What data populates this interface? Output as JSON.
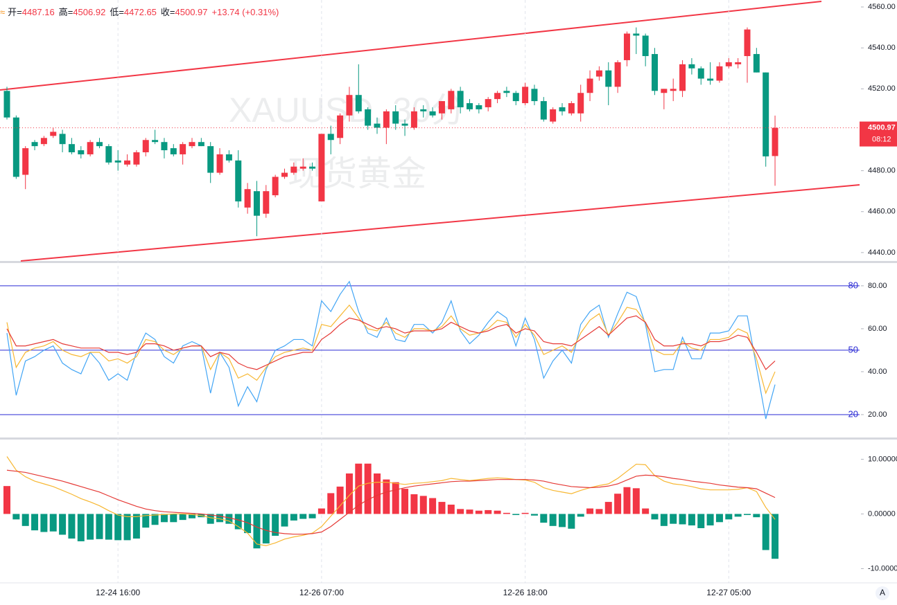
{
  "chart_data": [
    {
      "type": "candlestick",
      "header": [
        {
          "label": "开=",
          "value": "4487.16"
        },
        {
          "label": "高=",
          "value": "4506.92"
        },
        {
          "label": "低=",
          "value": "4472.65"
        },
        {
          "label": "收=",
          "value": "4500.97"
        }
      ],
      "change": "+13.74 (+0.31%)",
      "watermark": [
        "XAUUSD, 30分",
        "现货黄金"
      ],
      "last_price_label": "4500.97",
      "countdown": "08:12",
      "up_color": "#f23645",
      "down_color": "#089981",
      "categories": [
        null,
        null,
        null,
        null,
        null,
        null,
        null,
        null,
        null,
        null,
        null,
        null,
        "12-24 16:00",
        null,
        null,
        null,
        null,
        null,
        null,
        null,
        null,
        null,
        null,
        null,
        null,
        null,
        null,
        null,
        null,
        null,
        null,
        null,
        null,
        null,
        "12-26 07:00",
        null,
        null,
        null,
        null,
        null,
        null,
        null,
        null,
        null,
        null,
        null,
        null,
        null,
        null,
        null,
        null,
        null,
        null,
        null,
        null,
        null,
        "12-26 18:00",
        null,
        null,
        null,
        null,
        null,
        null,
        null,
        null,
        null,
        null,
        null,
        null,
        null,
        null,
        null,
        null,
        null,
        null,
        null,
        null,
        null,
        "12-27 05:00",
        null,
        null,
        null,
        null,
        null
      ],
      "open": [
        4519,
        4506,
        4478,
        4494,
        4493,
        4497,
        4498,
        4493,
        4490,
        4488,
        4494,
        4492,
        4485,
        4483,
        4483,
        4489,
        4495,
        4494,
        4491,
        4488,
        4492,
        4494,
        4492,
        4479,
        4488,
        4485,
        4462,
        4470,
        4459,
        4468,
        4477,
        4479,
        4481,
        4482,
        4465,
        4498,
        4496,
        4507,
        4517,
        4510,
        4503,
        4501,
        4509,
        4503,
        4501,
        4510,
        4509,
        4508,
        4510,
        4519,
        4513,
        4512,
        4511,
        4515,
        4519,
        4518,
        4513,
        4520,
        4514,
        4504,
        4511,
        4508,
        4508,
        4518,
        4526,
        4529,
        4521,
        4534,
        4547,
        4546,
        4537,
        4518,
        4519,
        4519,
        4532,
        4530,
        4525,
        4524,
        4531,
        4532,
        4536,
        4537,
        4528,
        4487.16
      ],
      "high": [
        4521,
        4507,
        4492,
        4495,
        4497,
        4501,
        4500,
        4496,
        4492,
        4495,
        4496,
        4493,
        4490,
        4488,
        4490,
        4496,
        4500,
        4496,
        4493,
        4494,
        4496,
        4496,
        4494,
        4491,
        4490,
        4490,
        4474,
        4475,
        4473,
        4478,
        4481,
        4484,
        4486,
        4484,
        4498,
        4502,
        4508,
        4521,
        4532,
        4511,
        4506,
        4510,
        4512,
        4505,
        4511,
        4512,
        4511,
        4514,
        4520,
        4521,
        4515,
        4513,
        4516,
        4519,
        4521,
        4519,
        4523,
        4522,
        4516,
        4511,
        4513,
        4514,
        4522,
        4529,
        4531,
        4533,
        4534,
        4548,
        4550,
        4547,
        4540,
        4520,
        4525,
        4534,
        4535,
        4531,
        4533,
        4533,
        4535,
        4535,
        4550,
        4540,
        4528,
        4506.92
      ],
      "low": [
        4505,
        4476,
        4471,
        4490,
        4492,
        4496,
        4489,
        4488,
        4486,
        4487,
        4491,
        4483,
        4480,
        4482,
        4482,
        4487,
        4493,
        4486,
        4487,
        4483,
        4491,
        4492,
        4474,
        4478,
        4484,
        4462,
        4459,
        4448,
        4457,
        4467,
        4476,
        4478,
        4480,
        4480,
        4465,
        4488,
        4493,
        4504,
        4508,
        4500,
        4498,
        4493,
        4500,
        4497,
        4500,
        4506,
        4506,
        4505,
        4508,
        4508,
        4509,
        4508,
        4509,
        4513,
        4516,
        4512,
        4512,
        4512,
        4504,
        4503,
        4507,
        4507,
        4504,
        4514,
        4524,
        4512,
        4518,
        4531,
        4537,
        4531,
        4517,
        4510,
        4514,
        4516,
        4527,
        4522,
        4522,
        4523,
        4530,
        4530,
        4523,
        4528,
        4482,
        4472.65
      ],
      "close": [
        4506,
        4477,
        4491,
        4492,
        4496,
        4499,
        4493,
        4489,
        4488,
        4494,
        4492,
        4484,
        4484,
        4485,
        4489,
        4495,
        4494,
        4490,
        4488,
        4493,
        4494,
        4492,
        4479,
        4488,
        4485,
        4465,
        4471,
        4458,
        4470,
        4477,
        4479,
        4482,
        4482,
        4481,
        4498,
        4495,
        4507,
        4517,
        4509,
        4502,
        4501,
        4509,
        4503,
        4502,
        4509,
        4509,
        4507,
        4514,
        4519,
        4511,
        4510,
        4510,
        4515,
        4518,
        4518,
        4514,
        4521,
        4514,
        4505,
        4510,
        4509,
        4513,
        4518,
        4525,
        4529,
        4521,
        4533,
        4547,
        4546,
        4536,
        4519,
        4520,
        4520,
        4532,
        4530,
        4525,
        4524,
        4531,
        4533,
        4533,
        4549,
        4528,
        4487,
        4500.97
      ],
      "ylim": [
        4435.9,
        4563.4
      ],
      "yticks": [
        {
          "value": 4440,
          "label": "4440.00"
        },
        {
          "value": 4460,
          "label": "4460.00"
        },
        {
          "value": 4480,
          "label": "4480.00"
        },
        {
          "value": 4500,
          "label": "4500.00"
        },
        {
          "value": 4520,
          "label": "4520.00"
        },
        {
          "value": 4540,
          "label": "4540.00"
        },
        {
          "value": 4560,
          "label": "4560.00"
        }
      ]
    },
    {
      "type": "line",
      "series": [
        {
          "color": "#42a5f5",
          "values": [
            58,
            29,
            45,
            47,
            50,
            52,
            44,
            41,
            39,
            49,
            44,
            36,
            39,
            36,
            49,
            58,
            55,
            47,
            44,
            52,
            54,
            52,
            30,
            49,
            42,
            24,
            33,
            26,
            41,
            50,
            52,
            55,
            55,
            52,
            73,
            68,
            76,
            82,
            68,
            58,
            56,
            65,
            55,
            54,
            62,
            62,
            58,
            63,
            73,
            59,
            53,
            57,
            63,
            68,
            65,
            52,
            65,
            55,
            37,
            45,
            50,
            44,
            62,
            68,
            71,
            56,
            67,
            77,
            75,
            62,
            40,
            41,
            41,
            56,
            46,
            46,
            58,
            58,
            59,
            66,
            66,
            42,
            18,
            34
          ]
        },
        {
          "color": "#f7b731",
          "values": [
            63,
            42,
            49,
            51,
            52,
            54,
            50,
            48,
            47,
            49,
            49,
            45,
            46,
            44,
            47,
            55,
            54,
            50,
            48,
            51,
            52,
            52,
            41,
            49,
            46,
            37,
            39,
            36,
            42,
            47,
            49,
            50,
            51,
            50,
            62,
            61,
            66,
            71,
            65,
            60,
            59,
            63,
            58,
            56,
            60,
            60,
            59,
            61,
            66,
            60,
            57,
            58,
            60,
            64,
            63,
            56,
            62,
            57,
            48,
            50,
            52,
            49,
            58,
            64,
            67,
            57,
            63,
            70,
            69,
            63,
            50,
            48,
            48,
            54,
            51,
            50,
            55,
            55,
            56,
            60,
            58,
            46,
            30,
            40
          ]
        },
        {
          "color": "#e53935",
          "values": [
            60,
            52,
            52,
            53,
            54,
            55,
            53,
            52,
            51,
            51,
            51,
            49,
            49,
            48,
            49,
            53,
            53,
            52,
            50,
            51,
            52,
            52,
            47,
            49,
            48,
            44,
            42,
            41,
            43,
            45,
            47,
            48,
            49,
            49,
            55,
            58,
            62,
            65,
            64,
            62,
            60,
            61,
            60,
            58,
            59,
            59,
            59,
            60,
            63,
            61,
            59,
            58,
            59,
            61,
            62,
            58,
            60,
            59,
            54,
            53,
            53,
            52,
            55,
            58,
            61,
            57,
            61,
            65,
            66,
            63,
            55,
            52,
            52,
            53,
            53,
            52,
            54,
            54,
            55,
            57,
            56,
            49,
            41,
            45
          ]
        }
      ],
      "levels": [
        80,
        50,
        20
      ],
      "level_color": "#2a2ad4",
      "ylim": [
        9.35,
        90.6
      ],
      "yticks": [
        {
          "value": 20,
          "label": "20.00"
        },
        {
          "value": 40,
          "label": "40.00"
        },
        {
          "value": 60,
          "label": "60.00"
        },
        {
          "value": 80,
          "label": "80.00"
        }
      ]
    },
    {
      "type": "macd",
      "histogram": [
        5.1,
        -1.0,
        -2.2,
        -3.0,
        -3.3,
        -3.2,
        -3.8,
        -4.5,
        -5.0,
        -4.7,
        -4.6,
        -4.7,
        -4.8,
        -4.8,
        -4.5,
        -2.5,
        -2.0,
        -1.5,
        -1.5,
        -1.1,
        -0.8,
        -0.6,
        -1.8,
        -1.5,
        -1.8,
        -2.8,
        -3.5,
        -6.3,
        -5.4,
        -4.0,
        -2.3,
        -1.2,
        -0.9,
        -0.8,
        1.0,
        3.8,
        5.0,
        7.4,
        9.2,
        9.2,
        7.4,
        6.3,
        5.8,
        4.6,
        3.6,
        3.3,
        2.9,
        2.2,
        1.7,
        0.9,
        0.8,
        0.6,
        0.7,
        0.6,
        0.2,
        -0.2,
        0.2,
        -0.3,
        -1.6,
        -2.2,
        -2.4,
        -2.7,
        -0.5,
        1.0,
        0.9,
        2.2,
        3.7,
        4.9,
        4.7,
        1.0,
        -1.0,
        -2.2,
        -1.8,
        -1.9,
        -2.1,
        -2.6,
        -2.1,
        -1.5,
        -1.0,
        -0.5,
        -0.2,
        -0.6,
        -6.6,
        -8.2
      ],
      "series": [
        {
          "color": "#f7b731",
          "values": [
            10.5,
            8.0,
            6.8,
            6.0,
            5.5,
            5.0,
            4.3,
            3.6,
            2.8,
            2.2,
            1.5,
            0.6,
            -0.2,
            -0.5,
            -0.5,
            -0.3,
            -0.2,
            -0.1,
            0,
            0,
            -0.1,
            -0.3,
            -0.7,
            -0.9,
            -1.3,
            -2.3,
            -3.5,
            -5.5,
            -5.8,
            -5.3,
            -4.6,
            -4.2,
            -3.9,
            -3.5,
            -2.3,
            -0.4,
            1.5,
            3.4,
            5.1,
            5.6,
            5.8,
            5.8,
            5.6,
            5.4,
            5.6,
            5.7,
            5.9,
            6.1,
            6.5,
            6.3,
            6.1,
            6.3,
            6.5,
            6.6,
            6.5,
            6.3,
            6.2,
            5.8,
            4.8,
            4.3,
            4.0,
            3.7,
            4.3,
            4.8,
            5.2,
            5.5,
            6.5,
            7.8,
            9.1,
            9.0,
            7.0,
            6.0,
            5.5,
            5.3,
            5.0,
            4.6,
            4.4,
            4.4,
            4.4,
            4.5,
            4.8,
            4.1,
            1.2,
            -1.0
          ]
        },
        {
          "color": "#e53935",
          "values": [
            8.0,
            7.8,
            7.6,
            7.2,
            6.8,
            6.4,
            6.0,
            5.5,
            5.0,
            4.5,
            4.0,
            3.3,
            2.6,
            2.0,
            1.4,
            0.9,
            0.6,
            0.4,
            0.3,
            0.2,
            0.1,
            0,
            -0.2,
            -0.4,
            -0.7,
            -1.1,
            -1.6,
            -2.4,
            -3.0,
            -3.4,
            -3.6,
            -3.7,
            -3.7,
            -3.6,
            -3.3,
            -2.3,
            -1.0,
            0.3,
            1.6,
            2.6,
            3.4,
            4.0,
            4.4,
            4.8,
            5.1,
            5.3,
            5.5,
            5.7,
            5.9,
            6.0,
            6.0,
            6.1,
            6.2,
            6.3,
            6.3,
            6.3,
            6.3,
            6.2,
            6.0,
            5.6,
            5.3,
            5.0,
            4.9,
            4.8,
            4.9,
            5.1,
            5.5,
            6.2,
            6.9,
            7.1,
            7.0,
            6.8,
            6.5,
            6.3,
            6.0,
            5.8,
            5.6,
            5.3,
            5.1,
            4.9,
            4.8,
            4.6,
            3.8,
            3.0
          ]
        }
      ],
      "ylim": [
        -12.6,
        13.6
      ],
      "yticks": [
        {
          "value": -10,
          "label": "-10.00000"
        },
        {
          "value": 0,
          "label": "0.00000"
        },
        {
          "value": 10,
          "label": "10.00000"
        }
      ]
    }
  ],
  "ui": {
    "auto_scale_button": "A"
  }
}
